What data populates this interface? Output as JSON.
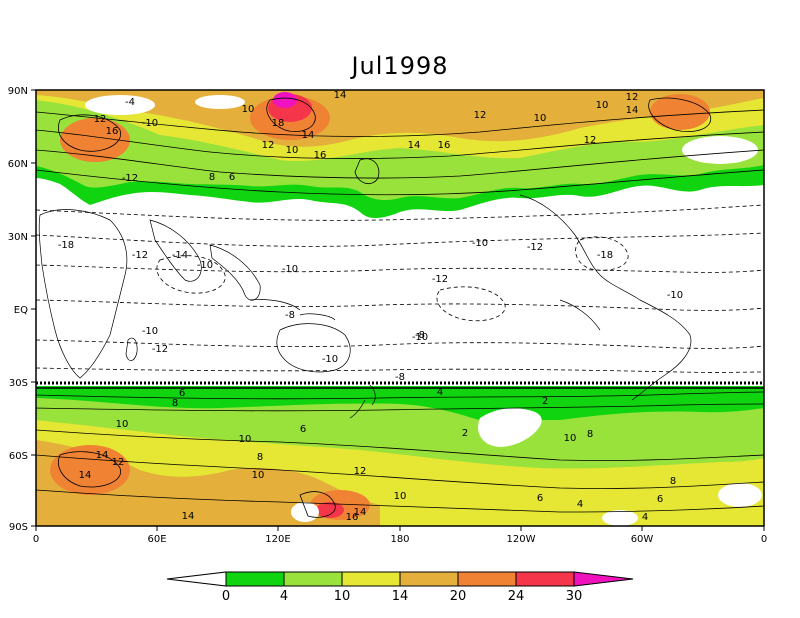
{
  "title": "Jul1998",
  "y_axis_labels": [
    "90N",
    "60N",
    "30N",
    "EQ",
    "30S",
    "60S",
    "90S"
  ],
  "x_axis_labels": [
    "0",
    "60E",
    "120E",
    "180",
    "120W",
    "60W",
    "0"
  ],
  "colorbar": {
    "levels": [
      "0",
      "4",
      "10",
      "14",
      "20",
      "24",
      "30"
    ],
    "colors": [
      "#ffffff",
      "#11d411",
      "#99e23c",
      "#e6e634",
      "#e4b03b",
      "#f08234",
      "#f5364a",
      "#f012be"
    ]
  },
  "contour_labels": [
    {
      "text": "14"
    },
    {
      "text": "12"
    },
    {
      "text": "16"
    },
    {
      "text": "10"
    },
    {
      "text": "18"
    },
    {
      "text": "14"
    },
    {
      "text": "12"
    },
    {
      "text": "10"
    },
    {
      "text": "16"
    },
    {
      "text": "8"
    },
    {
      "text": "6"
    },
    {
      "text": "14"
    },
    {
      "text": "16"
    },
    {
      "text": "12"
    },
    {
      "text": "10"
    },
    {
      "text": "12"
    },
    {
      "text": "14"
    },
    {
      "text": "10"
    },
    {
      "text": "12"
    },
    {
      "text": "16"
    },
    {
      "text": "-4"
    },
    {
      "text": "-10"
    },
    {
      "text": "-12"
    },
    {
      "text": "-14"
    },
    {
      "text": "-18"
    },
    {
      "text": "-10"
    },
    {
      "text": "-12"
    },
    {
      "text": "-10"
    },
    {
      "text": "-8"
    },
    {
      "text": "-10"
    },
    {
      "text": "-12"
    },
    {
      "text": "-10"
    },
    {
      "text": "-8"
    },
    {
      "text": "-10"
    },
    {
      "text": "-12"
    },
    {
      "text": "-10"
    },
    {
      "text": "-18"
    },
    {
      "text": "-12"
    },
    {
      "text": "-10"
    },
    {
      "text": "-8"
    },
    {
      "text": "10"
    },
    {
      "text": "8"
    },
    {
      "text": "6"
    },
    {
      "text": "4"
    },
    {
      "text": "10"
    },
    {
      "text": "14"
    },
    {
      "text": "12"
    },
    {
      "text": "14"
    },
    {
      "text": "10"
    },
    {
      "text": "12"
    },
    {
      "text": "6"
    },
    {
      "text": "8"
    },
    {
      "text": "10"
    },
    {
      "text": "2"
    },
    {
      "text": "2"
    },
    {
      "text": "10"
    },
    {
      "text": "8"
    },
    {
      "text": "6"
    },
    {
      "text": "4"
    },
    {
      "text": "14"
    },
    {
      "text": "16"
    },
    {
      "text": "14"
    },
    {
      "text": "8"
    },
    {
      "text": "6"
    },
    {
      "text": "4"
    }
  ]
}
